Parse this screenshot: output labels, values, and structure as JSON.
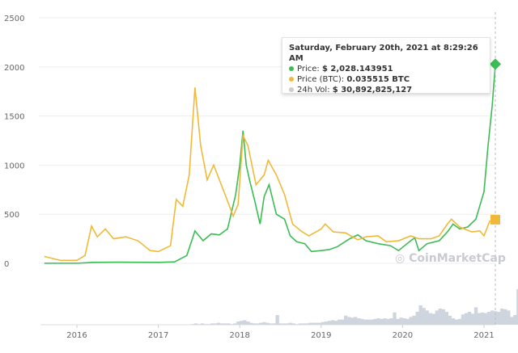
{
  "chart_data": {
    "type": "line",
    "title": "",
    "xlabel": "",
    "ylabel": "",
    "x_ticks": [
      "2016",
      "2017",
      "2018",
      "2019",
      "2020",
      "2021"
    ],
    "y_ticks": [
      "0",
      "500",
      "1000",
      "1500",
      "2000",
      "2500"
    ],
    "ylim": [
      0,
      2500
    ],
    "xlim": [
      2015.6,
      2021.2
    ],
    "grid": true,
    "series": [
      {
        "name": "Price",
        "color": "#3cbc54",
        "x": [
          2015.6,
          2016.0,
          2016.2,
          2016.5,
          2017.0,
          2017.2,
          2017.35,
          2017.45,
          2017.55,
          2017.65,
          2017.75,
          2017.85,
          2017.95,
          2018.0,
          2018.04,
          2018.08,
          2018.12,
          2018.18,
          2018.25,
          2018.3,
          2018.36,
          2018.45,
          2018.55,
          2018.62,
          2018.7,
          2018.8,
          2018.88,
          2019.0,
          2019.1,
          2019.2,
          2019.35,
          2019.45,
          2019.55,
          2019.7,
          2019.85,
          2019.95,
          2020.1,
          2020.15,
          2020.2,
          2020.3,
          2020.45,
          2020.55,
          2020.62,
          2020.7,
          2020.8,
          2020.9,
          2021.0,
          2021.05,
          2021.1,
          2021.14
        ],
        "values": [
          1,
          1,
          10,
          12,
          10,
          15,
          80,
          330,
          230,
          300,
          290,
          350,
          700,
          1000,
          1350,
          1000,
          850,
          650,
          400,
          680,
          800,
          500,
          450,
          280,
          220,
          200,
          120,
          130,
          140,
          170,
          250,
          290,
          230,
          200,
          180,
          130,
          230,
          260,
          130,
          200,
          230,
          320,
          400,
          350,
          370,
          450,
          730,
          1200,
          1600,
          2028
        ]
      },
      {
        "name": "Price (BTC)",
        "color": "#f0b93a",
        "x": [
          2015.6,
          2015.8,
          2016.0,
          2016.1,
          2016.18,
          2016.25,
          2016.35,
          2016.45,
          2016.6,
          2016.75,
          2016.9,
          2017.0,
          2017.15,
          2017.22,
          2017.3,
          2017.38,
          2017.45,
          2017.52,
          2017.6,
          2017.68,
          2017.75,
          2017.82,
          2017.92,
          2017.98,
          2018.04,
          2018.1,
          2018.2,
          2018.3,
          2018.35,
          2018.45,
          2018.55,
          2018.65,
          2018.75,
          2018.85,
          2019.0,
          2019.05,
          2019.15,
          2019.3,
          2019.45,
          2019.55,
          2019.7,
          2019.8,
          2019.95,
          2020.1,
          2020.2,
          2020.35,
          2020.45,
          2020.55,
          2020.6,
          2020.7,
          2020.85,
          2020.95,
          2021.0,
          2021.07,
          2021.14
        ],
        "values": [
          70,
          30,
          30,
          80,
          380,
          270,
          350,
          250,
          270,
          230,
          130,
          120,
          180,
          650,
          580,
          900,
          1790,
          1200,
          850,
          1000,
          850,
          700,
          480,
          600,
          1300,
          1200,
          800,
          900,
          1050,
          900,
          700,
          400,
          330,
          280,
          350,
          400,
          320,
          310,
          240,
          270,
          280,
          220,
          230,
          280,
          250,
          250,
          280,
          400,
          450,
          370,
          320,
          330,
          280,
          430,
          445
        ]
      }
    ],
    "volume": {
      "name": "24h Vol",
      "color": "#cfd5df",
      "start": 2017.4,
      "step": 0.04,
      "values": [
        1,
        2,
        1,
        2,
        1,
        1,
        2,
        2,
        3,
        2,
        2,
        2,
        1,
        2,
        5,
        6,
        7,
        5,
        3,
        2,
        2,
        3,
        4,
        3,
        2,
        2,
        15,
        2,
        2,
        2,
        3,
        2,
        1,
        2,
        2,
        2,
        3,
        3,
        3,
        3,
        4,
        5,
        6,
        7,
        6,
        8,
        8,
        14,
        12,
        11,
        12,
        10,
        9,
        8,
        8,
        8,
        9,
        10,
        9,
        10,
        9,
        10,
        19,
        9,
        11,
        10,
        9,
        12,
        14,
        20,
        30,
        26,
        22,
        18,
        17,
        22,
        25,
        24,
        20,
        14,
        10,
        8,
        9,
        16,
        18,
        20,
        17,
        27,
        18,
        19,
        18,
        20,
        22,
        21,
        20,
        25,
        24,
        22,
        12,
        15,
        55,
        50,
        60,
        70,
        75
      ]
    },
    "tooltip": {
      "title": "Saturday, February 20th, 2021 at 8:29:26 AM",
      "rows": [
        {
          "label": "Price:",
          "value": "$ 2,028.143951",
          "color": "#3cbc54"
        },
        {
          "label": "Price (BTC):",
          "value": "0.035515 BTC",
          "color": "#f0b93a"
        },
        {
          "label": "24h Vol:",
          "value": "$ 30,892,825,127",
          "color": "#cccccc"
        }
      ]
    },
    "watermark": "CoinMarketCap"
  }
}
